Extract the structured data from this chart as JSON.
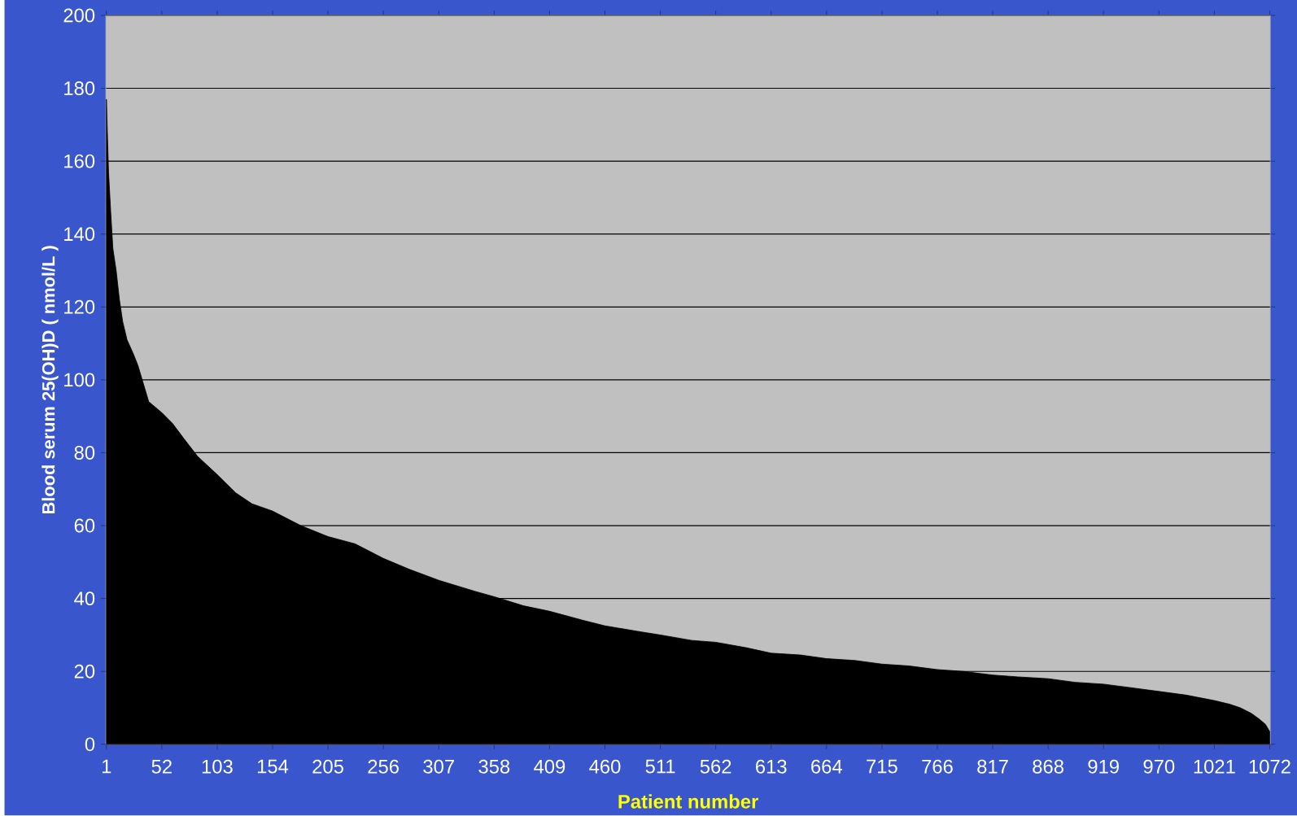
{
  "chart_data": {
    "type": "area",
    "xlabel": "Patient number",
    "ylabel": "Blood serum 25(OH)D ( nmol/L )",
    "x": [
      1,
      3,
      5,
      7,
      10,
      13,
      16,
      20,
      26,
      30,
      35,
      40,
      52,
      62,
      72,
      85,
      103,
      120,
      135,
      154,
      180,
      205,
      230,
      256,
      280,
      307,
      340,
      358,
      385,
      409,
      440,
      460,
      490,
      511,
      540,
      562,
      590,
      613,
      640,
      664,
      690,
      715,
      740,
      766,
      790,
      817,
      840,
      868,
      893,
      919,
      945,
      970,
      995,
      1021,
      1035,
      1045,
      1055,
      1062,
      1068,
      1072
    ],
    "series": [
      {
        "color": "#000000",
        "values": [
          177,
          157,
          146,
          136,
          130,
          122,
          116,
          111,
          107,
          104,
          99,
          94,
          91,
          88,
          84,
          79,
          74,
          69,
          66,
          64,
          60,
          57,
          55,
          51,
          48,
          45,
          42,
          40.5,
          38,
          36.5,
          34,
          32.5,
          31,
          30,
          28.5,
          28,
          26.5,
          25,
          24.5,
          23.5,
          23,
          22,
          21.5,
          20.5,
          20,
          19,
          18.5,
          18,
          17,
          16.5,
          15.5,
          14.5,
          13.5,
          12,
          11,
          10,
          8.5,
          7,
          5.5,
          3.5
        ]
      }
    ],
    "xlim": [
      0.5,
      1072.5
    ],
    "xticks": [
      1,
      52,
      103,
      154,
      205,
      256,
      307,
      358,
      409,
      460,
      511,
      562,
      613,
      664,
      715,
      766,
      817,
      868,
      919,
      970,
      1021,
      1072
    ],
    "ylim": [
      0,
      200
    ],
    "yticks": [
      0,
      20,
      40,
      60,
      80,
      100,
      120,
      140,
      160,
      180,
      200
    ],
    "grid": "y"
  }
}
